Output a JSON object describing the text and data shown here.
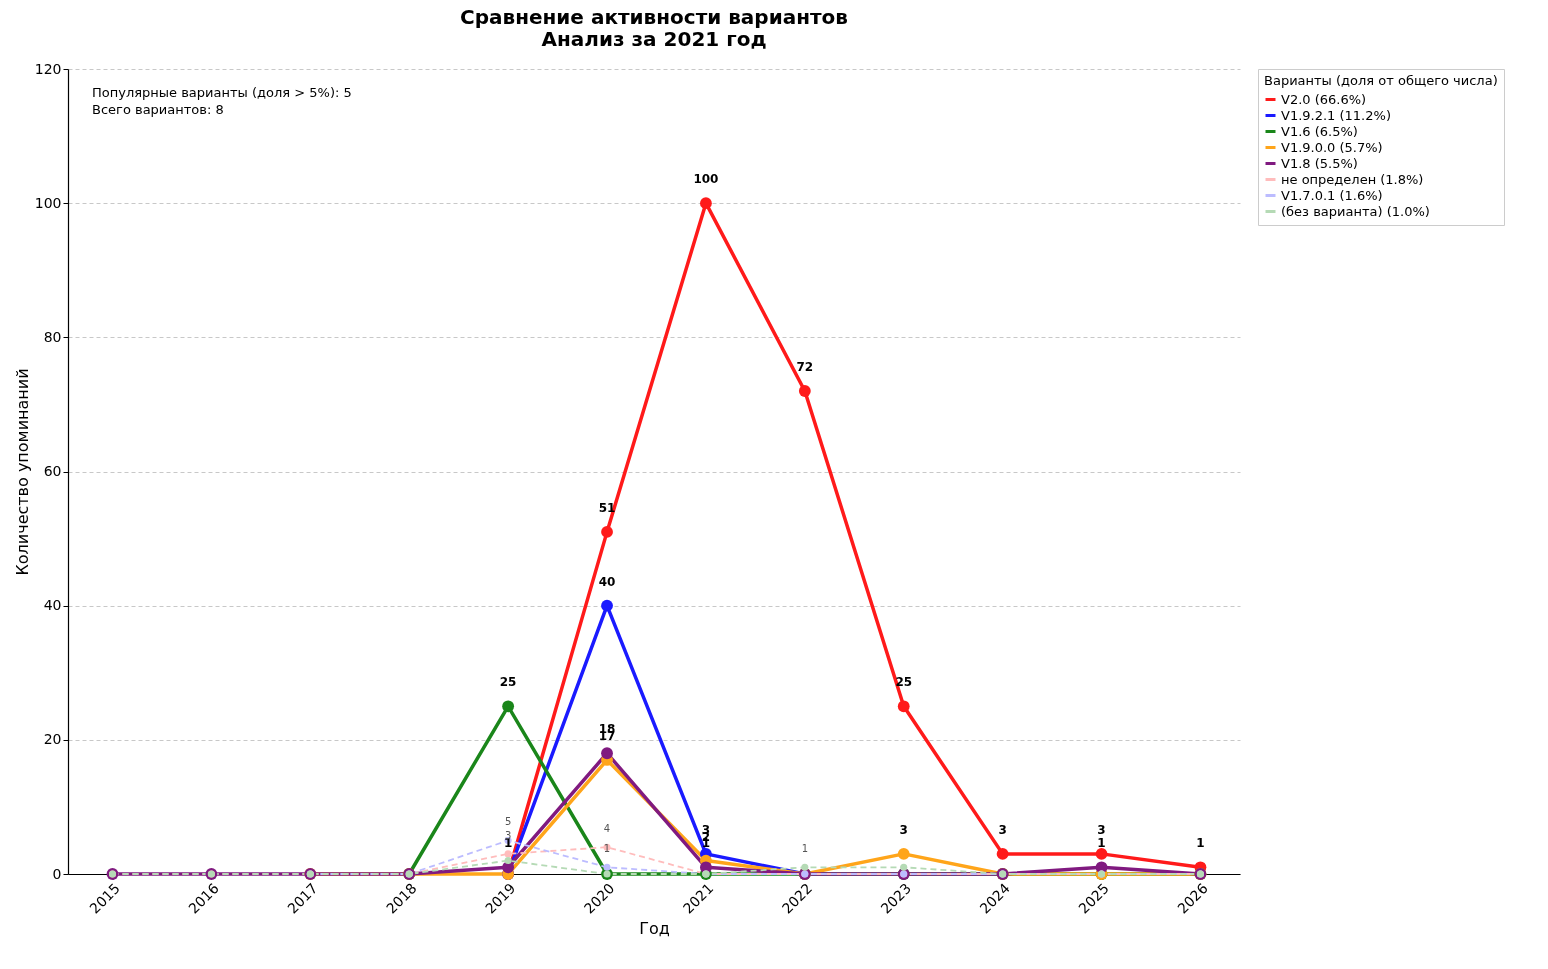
{
  "chart_data": {
    "type": "line",
    "title": "Сравнение активности вариантов",
    "subtitle": "Анализ за 2021 год",
    "xlabel": "Год",
    "ylabel": "Количество упоминаний",
    "legend_title": "Варианты (доля от общего числа)",
    "categories": [
      "2015",
      "2016",
      "2017",
      "2018",
      "2019",
      "2020",
      "2021",
      "2022",
      "2023",
      "2024",
      "2025",
      "2026"
    ],
    "ylim": [
      0,
      120
    ],
    "yticks": [
      0,
      20,
      40,
      60,
      80,
      100,
      120
    ],
    "grid": "y",
    "legend": "top right",
    "marker": "circle",
    "annotations": [
      "Популярные варианты (доля > 5%): 5",
      "Всего вариантов: 8"
    ],
    "series": [
      {
        "name": "V2.0 (66.6%)",
        "color": "#ff1a1a",
        "line_style": "solid",
        "values": [
          null,
          null,
          null,
          null,
          0,
          51,
          100,
          72,
          25,
          3,
          3,
          1
        ],
        "value_labels": [
          null,
          null,
          null,
          null,
          null,
          "51",
          "100",
          "72",
          "25",
          "3",
          "3",
          "1"
        ]
      },
      {
        "name": "V1.9.2.1 (11.2%)",
        "color": "#1a1aff",
        "line_style": "solid",
        "values": [
          null,
          null,
          null,
          null,
          0,
          40,
          3,
          0,
          null,
          null,
          null,
          null
        ],
        "value_labels": [
          null,
          null,
          null,
          null,
          null,
          "40",
          "3",
          null,
          null,
          null,
          null,
          null
        ]
      },
      {
        "name": "V1.6 (6.5%)",
        "color": "#1a861a",
        "line_style": "solid",
        "values": [
          null,
          null,
          null,
          0,
          25,
          0,
          0,
          0,
          0,
          0,
          0,
          0
        ],
        "value_labels": [
          null,
          null,
          null,
          null,
          "25",
          null,
          null,
          null,
          null,
          null,
          null,
          null
        ]
      },
      {
        "name": "V1.9.0.0 (5.7%)",
        "color": "#ffa51a",
        "line_style": "solid",
        "values": [
          null,
          null,
          0,
          0,
          0,
          17,
          2,
          0,
          3,
          0,
          0,
          0
        ],
        "value_labels": [
          null,
          null,
          null,
          null,
          null,
          "17",
          "2",
          null,
          "3",
          null,
          null,
          null
        ]
      },
      {
        "name": "V1.8 (5.5%)",
        "color": "#801a80",
        "line_style": "solid",
        "values": [
          0,
          0,
          0,
          0,
          1,
          18,
          1,
          0,
          0,
          0,
          1,
          0
        ],
        "value_labels": [
          null,
          null,
          null,
          null,
          "1",
          "18",
          "1",
          null,
          null,
          null,
          "1",
          null
        ]
      },
      {
        "name": "не определен (1.8%)",
        "color": "#ffbcbc",
        "line_style": "dashed",
        "values": [
          0,
          0,
          0,
          0,
          3,
          4,
          0,
          0,
          0,
          0,
          0,
          0
        ],
        "value_labels": [
          null,
          null,
          null,
          null,
          "3",
          "4",
          null,
          null,
          null,
          null,
          null,
          null
        ]
      },
      {
        "name": "V1.7.0.1 (1.6%)",
        "color": "#bcbcff",
        "line_style": "dashed",
        "values": [
          null,
          null,
          0,
          0,
          5,
          1,
          0,
          0,
          0,
          0,
          0,
          0
        ],
        "value_labels": [
          null,
          null,
          null,
          null,
          "5",
          "1",
          null,
          null,
          null,
          null,
          null,
          null
        ]
      },
      {
        "name": "(без варианта) (1.0%)",
        "color": "#b5dab5",
        "line_style": "dashed",
        "values": [
          0,
          0,
          0,
          0,
          2,
          0,
          0,
          1,
          1,
          0,
          0,
          0
        ],
        "value_labels": [
          null,
          null,
          null,
          null,
          null,
          null,
          null,
          "1",
          null,
          null,
          null,
          null
        ]
      }
    ]
  }
}
